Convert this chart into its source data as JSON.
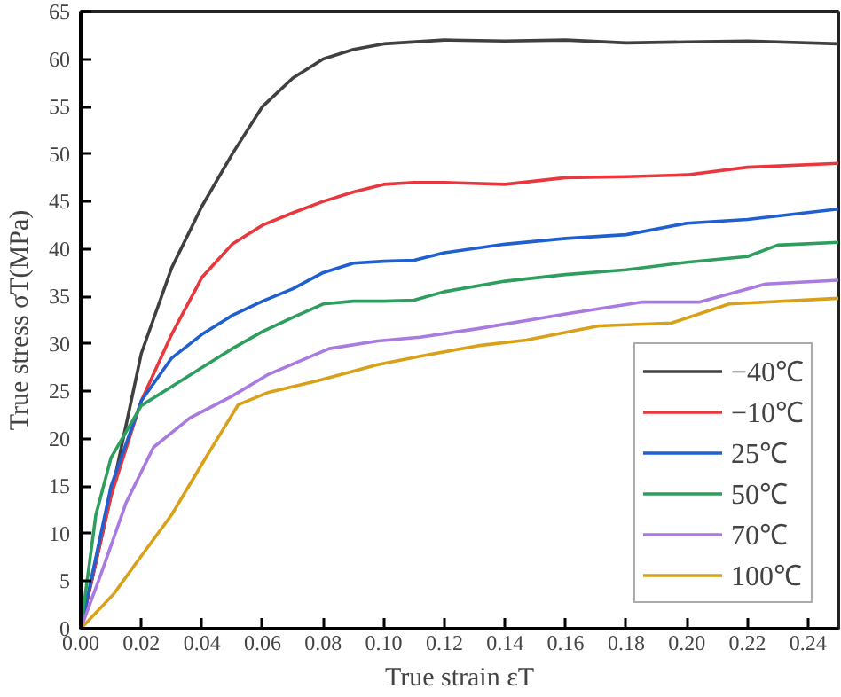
{
  "chart_data": {
    "type": "line",
    "xlabel": "True strain εT",
    "ylabel": "True stress σT(MPa)",
    "xlim": [
      0,
      0.25
    ],
    "ylim": [
      0,
      65
    ],
    "xticks": [
      {
        "value": 0,
        "label": "0.00"
      },
      {
        "value": 0.02,
        "label": "0.02"
      },
      {
        "value": 0.04,
        "label": "0.04"
      },
      {
        "value": 0.06,
        "label": "0.06"
      },
      {
        "value": 0.08,
        "label": "0.08"
      },
      {
        "value": 0.1,
        "label": "0.10"
      },
      {
        "value": 0.12,
        "label": "0.12"
      },
      {
        "value": 0.14,
        "label": "0.14"
      },
      {
        "value": 0.16,
        "label": "0.16"
      },
      {
        "value": 0.18,
        "label": "0.18"
      },
      {
        "value": 0.2,
        "label": "0.20"
      },
      {
        "value": 0.22,
        "label": "0.22"
      },
      {
        "value": 0.24,
        "label": "0.24"
      }
    ],
    "yticks": [
      0,
      5,
      10,
      15,
      20,
      25,
      30,
      35,
      40,
      45,
      50,
      55,
      60,
      65
    ],
    "grid": false,
    "legend": "bottom right",
    "marker": "none",
    "line_style": "solid",
    "series": [
      {
        "name": "−40℃",
        "color": "#404040",
        "x": [
          0,
          0.01,
          0.02,
          0.03,
          0.04,
          0.05,
          0.06,
          0.07,
          0.08,
          0.09,
          0.1,
          0.12,
          0.14,
          0.16,
          0.18,
          0.2,
          0.22,
          0.25
        ],
        "values": [
          0,
          14,
          29,
          38,
          44.5,
          50,
          55,
          58,
          60,
          61,
          61.6,
          62,
          61.9,
          62,
          61.7,
          61.8,
          61.9,
          61.6
        ]
      },
      {
        "name": "−10℃",
        "color": "#e8383d",
        "x": [
          0,
          0.01,
          0.02,
          0.03,
          0.04,
          0.05,
          0.06,
          0.07,
          0.08,
          0.09,
          0.1,
          0.11,
          0.12,
          0.14,
          0.16,
          0.18,
          0.2,
          0.22,
          0.25
        ],
        "values": [
          0,
          14,
          24,
          31,
          37,
          40.5,
          42.5,
          43.8,
          45,
          46,
          46.8,
          47,
          47,
          46.8,
          47.5,
          47.6,
          47.8,
          48.6,
          49
        ]
      },
      {
        "name": "25℃",
        "color": "#1f5fcf",
        "x": [
          0,
          0.01,
          0.02,
          0.03,
          0.04,
          0.05,
          0.06,
          0.07,
          0.08,
          0.09,
          0.1,
          0.11,
          0.12,
          0.14,
          0.16,
          0.18,
          0.2,
          0.22,
          0.25
        ],
        "values": [
          0,
          15,
          24,
          28.5,
          31,
          33,
          34.5,
          35.8,
          37.5,
          38.5,
          38.7,
          38.8,
          39.6,
          40.5,
          41.1,
          41.5,
          42.7,
          43.1,
          44.2
        ]
      },
      {
        "name": "50℃",
        "color": "#2e9e5e",
        "x": [
          0,
          0.005,
          0.01,
          0.02,
          0.03,
          0.04,
          0.05,
          0.06,
          0.07,
          0.08,
          0.09,
          0.1,
          0.11,
          0.12,
          0.14,
          0.16,
          0.18,
          0.2,
          0.22,
          0.23,
          0.25
        ],
        "values": [
          0,
          12,
          18,
          23.5,
          25.5,
          27.5,
          29.5,
          31.3,
          32.8,
          34.2,
          34.5,
          34.5,
          34.6,
          35.5,
          36.6,
          37.3,
          37.8,
          38.6,
          39.2,
          40.4,
          40.7
        ]
      },
      {
        "name": "70℃",
        "color": "#a97ae0",
        "x": [
          0,
          0.0065,
          0.015,
          0.024,
          0.036,
          0.05,
          0.062,
          0.082,
          0.098,
          0.112,
          0.131,
          0.161,
          0.185,
          0.204,
          0.226,
          0.25
        ],
        "values": [
          0,
          5.6,
          13.3,
          19.1,
          22.2,
          24.5,
          26.8,
          29.5,
          30.3,
          30.7,
          31.6,
          33.2,
          34.4,
          34.4,
          36.3,
          36.7
        ]
      },
      {
        "name": "100℃",
        "color": "#d9a01a",
        "x": [
          0,
          0.011,
          0.018,
          0.03,
          0.042,
          0.052,
          0.062,
          0.078,
          0.098,
          0.112,
          0.131,
          0.147,
          0.171,
          0.195,
          0.214,
          0.25
        ],
        "values": [
          0,
          3.7,
          6.8,
          12,
          18.4,
          23.6,
          24.9,
          26.1,
          27.8,
          28.7,
          29.8,
          30.4,
          31.9,
          32.2,
          34.2,
          34.8
        ]
      }
    ]
  }
}
